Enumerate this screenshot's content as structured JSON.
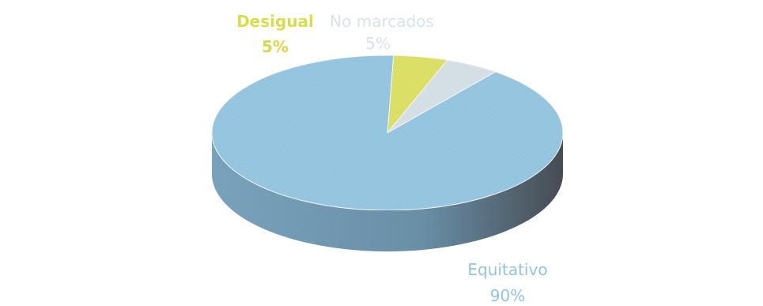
{
  "chart_data": {
    "type": "pie",
    "style": "3d",
    "title": "",
    "slices": [
      {
        "label": "Desigual",
        "value": 5,
        "value_label": "5%",
        "color": "#e4e86a"
      },
      {
        "label": "No marcados",
        "value": 5,
        "value_label": "5%",
        "color": "#dde8ee"
      },
      {
        "label": "Equitativo",
        "value": 90,
        "value_label": "90%",
        "color": "#9ccde8"
      }
    ],
    "legend": "none"
  }
}
